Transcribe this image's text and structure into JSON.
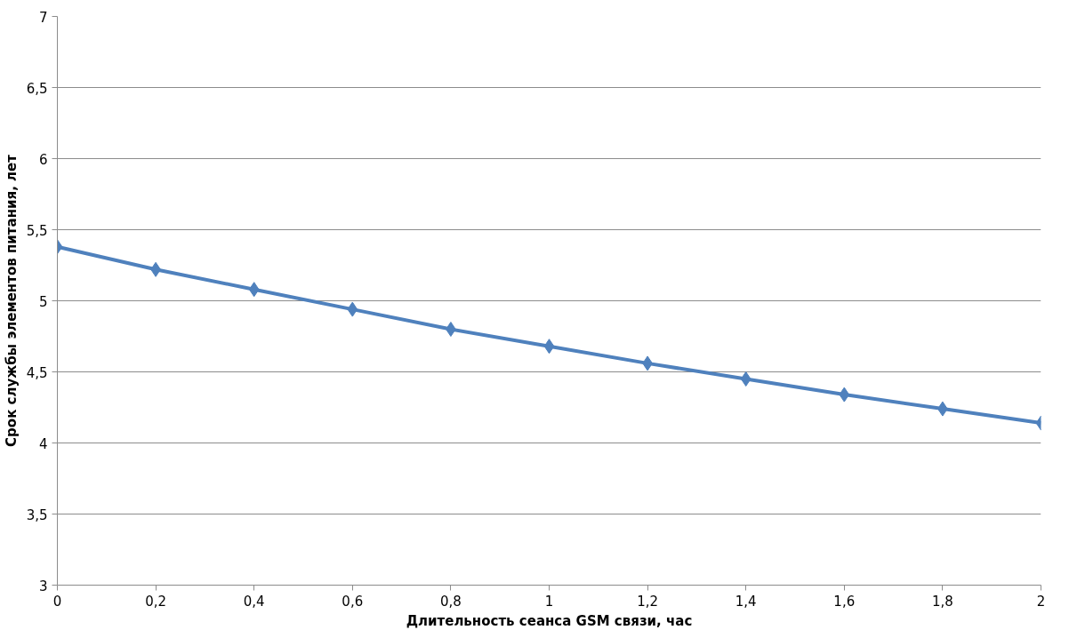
{
  "chart_data": {
    "type": "line",
    "xlabel": "Длительность сеанса GSM связи, час",
    "ylabel": "Срок службы элементов питания, лет",
    "x": [
      0,
      0.2,
      0.4,
      0.6,
      0.8,
      1,
      1.2,
      1.4,
      1.6,
      1.8,
      2
    ],
    "series": [
      {
        "color": "#4f81bd",
        "values": [
          5.38,
          5.22,
          5.08,
          4.94,
          4.8,
          4.68,
          4.56,
          4.45,
          4.34,
          4.24,
          4.14
        ]
      }
    ],
    "xlim": [
      0,
      2
    ],
    "xticks": [
      0,
      {
        "value": 0.2,
        "label": "0,2"
      },
      {
        "value": 0.4,
        "label": "0,4"
      },
      {
        "value": 0.6,
        "label": "0,6"
      },
      {
        "value": 0.8,
        "label": "0,8"
      },
      1,
      {
        "value": 1.2,
        "label": "1,2"
      },
      {
        "value": 1.4,
        "label": "1,4"
      },
      {
        "value": 1.6,
        "label": "1,6"
      },
      {
        "value": 1.8,
        "label": "1,8"
      },
      2
    ],
    "ylim": [
      3,
      7
    ],
    "yticks": [
      3,
      {
        "value": 3.5,
        "label": "3,5"
      },
      4,
      {
        "value": 4.5,
        "label": "4,5"
      },
      5,
      {
        "value": 5.5,
        "label": "5,5"
      },
      6,
      {
        "value": 6.5,
        "label": "6,5"
      },
      7
    ],
    "grid": "y",
    "marker": "diamond",
    "line_style": "solid"
  }
}
